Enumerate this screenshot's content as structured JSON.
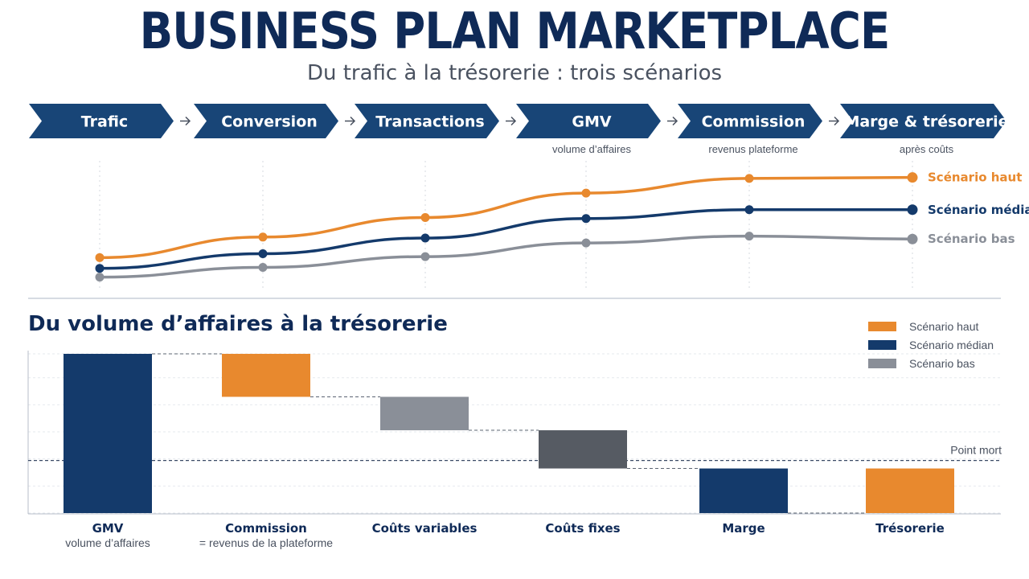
{
  "header": {
    "title": "BUSINESS PLAN MARKETPLACE",
    "subtitle": "Du trafic à la trésorerie : trois scénarios"
  },
  "flow": {
    "steps": [
      {
        "label": "Trafic",
        "sub": ""
      },
      {
        "label": "Conversion",
        "sub": ""
      },
      {
        "label": "Transactions",
        "sub": ""
      },
      {
        "label": "GMV",
        "sub": "volume d’affaires"
      },
      {
        "label": "Commission",
        "sub": "revenus plateforme"
      },
      {
        "label": "Marge & trésorerie",
        "sub": "après coûts"
      }
    ]
  },
  "colors": {
    "navy": "#143a6b",
    "orange": "#e8892e",
    "gray": "#8a8f98",
    "darkgray": "#565b63"
  },
  "chart_data": [
    {
      "type": "line",
      "categories": [
        "Trafic",
        "Conversion",
        "Transactions",
        "GMV",
        "Commission",
        "Marge & trésorerie"
      ],
      "series": [
        {
          "name": "Scénario haut",
          "values": [
            31,
            52,
            72,
            97,
            112,
            113
          ]
        },
        {
          "name": "Scénario médian",
          "values": [
            20,
            35,
            51,
            71,
            80,
            80
          ]
        },
        {
          "name": "Scénario bas",
          "values": [
            11,
            21,
            32,
            46,
            53,
            50
          ]
        }
      ],
      "ylim": [
        0,
        130
      ],
      "grid": false,
      "legend": "right"
    },
    {
      "type": "bar",
      "title": "Du volume d’affaires à la trésorerie",
      "categories": [
        "GMV",
        "Commission",
        "Coûts variables",
        "Coûts fixes",
        "Marge",
        "Trésorerie"
      ],
      "category_subtitles": [
        "volume d’affaires",
        "= revenus de la plateforme",
        "",
        "",
        "",
        ""
      ],
      "bars": [
        {
          "start": 0,
          "end": 100,
          "series": "Scénario médian"
        },
        {
          "start": 100,
          "end": 73,
          "series": "Scénario haut"
        },
        {
          "start": 73,
          "end": 52,
          "series": "Scénario bas"
        },
        {
          "start": 52,
          "end": 28,
          "series": "Coûts fixes"
        },
        {
          "start": 28,
          "end": 0,
          "series": "Scénario médian"
        },
        {
          "start": 28,
          "end": 0,
          "series": "Scénario haut"
        }
      ],
      "reference_line": {
        "label": "Point mort",
        "value": 33
      },
      "legend": {
        "position": "top-right",
        "entries": [
          "Scénario haut",
          "Scénario médian",
          "Scénario bas"
        ]
      },
      "ylim": [
        0,
        100
      ],
      "grid": true
    }
  ]
}
